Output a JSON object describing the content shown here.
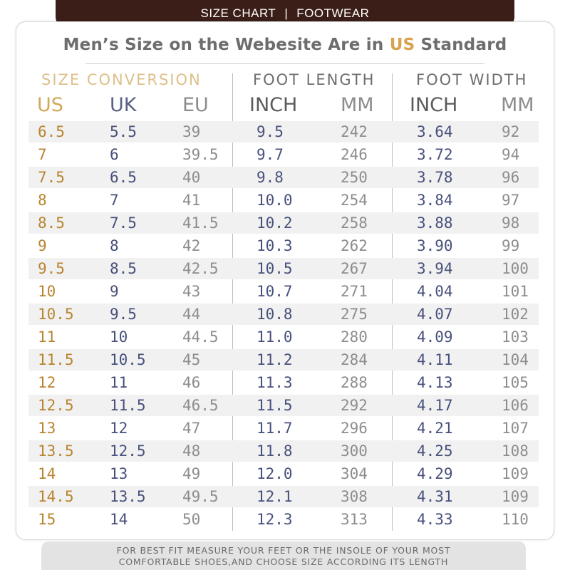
{
  "banner": {
    "left": "SIZE CHART",
    "separator": "|",
    "right": "FOOTWEAR"
  },
  "headline": {
    "before": "Men’s Size on the Webesite Are in ",
    "accent": "US",
    "after": " Standard"
  },
  "groups": {
    "conversion": "SIZE CONVERSION",
    "length": "FOOT LENGTH",
    "width": "FOOT WIDTH"
  },
  "subheaders": {
    "us": "US",
    "uk": "UK",
    "eu": "EU",
    "length_inch": "INCH",
    "length_mm": "MM",
    "width_inch": "INCH",
    "width_mm": "MM"
  },
  "colors": {
    "gold": "#b8852f",
    "navy": "#47507b",
    "gray": "#8d8d8d",
    "banner": "#3a1e17"
  },
  "rows": [
    {
      "us": "6.5",
      "uk": "5.5",
      "eu": "39",
      "length_inch": "9.5",
      "length_mm": "242",
      "width_inch": "3.64",
      "width_mm": "92"
    },
    {
      "us": "7",
      "uk": "6",
      "eu": "39.5",
      "length_inch": "9.7",
      "length_mm": "246",
      "width_inch": "3.72",
      "width_mm": "94"
    },
    {
      "us": "7.5",
      "uk": "6.5",
      "eu": "40",
      "length_inch": "9.8",
      "length_mm": "250",
      "width_inch": "3.78",
      "width_mm": "96"
    },
    {
      "us": "8",
      "uk": "7",
      "eu": "41",
      "length_inch": "10.0",
      "length_mm": "254",
      "width_inch": "3.84",
      "width_mm": "97"
    },
    {
      "us": "8.5",
      "uk": "7.5",
      "eu": "41.5",
      "length_inch": "10.2",
      "length_mm": "258",
      "width_inch": "3.88",
      "width_mm": "98"
    },
    {
      "us": "9",
      "uk": "8",
      "eu": "42",
      "length_inch": "10.3",
      "length_mm": "262",
      "width_inch": "3.90",
      "width_mm": "99"
    },
    {
      "us": "9.5",
      "uk": "8.5",
      "eu": "42.5",
      "length_inch": "10.5",
      "length_mm": "267",
      "width_inch": "3.94",
      "width_mm": "100"
    },
    {
      "us": "10",
      "uk": "9",
      "eu": "43",
      "length_inch": "10.7",
      "length_mm": "271",
      "width_inch": "4.04",
      "width_mm": "101"
    },
    {
      "us": "10.5",
      "uk": "9.5",
      "eu": "44",
      "length_inch": "10.8",
      "length_mm": "275",
      "width_inch": "4.07",
      "width_mm": "102"
    },
    {
      "us": "11",
      "uk": "10",
      "eu": "44.5",
      "length_inch": "11.0",
      "length_mm": "280",
      "width_inch": "4.09",
      "width_mm": "103"
    },
    {
      "us": "11.5",
      "uk": "10.5",
      "eu": "45",
      "length_inch": "11.2",
      "length_mm": "284",
      "width_inch": "4.11",
      "width_mm": "104"
    },
    {
      "us": "12",
      "uk": "11",
      "eu": "46",
      "length_inch": "11.3",
      "length_mm": "288",
      "width_inch": "4.13",
      "width_mm": "105"
    },
    {
      "us": "12.5",
      "uk": "11.5",
      "eu": "46.5",
      "length_inch": "11.5",
      "length_mm": "292",
      "width_inch": "4.17",
      "width_mm": "106"
    },
    {
      "us": "13",
      "uk": "12",
      "eu": "47",
      "length_inch": "11.7",
      "length_mm": "296",
      "width_inch": "4.21",
      "width_mm": "107"
    },
    {
      "us": "13.5",
      "uk": "12.5",
      "eu": "48",
      "length_inch": "11.8",
      "length_mm": "300",
      "width_inch": "4.25",
      "width_mm": "108"
    },
    {
      "us": "14",
      "uk": "13",
      "eu": "49",
      "length_inch": "12.0",
      "length_mm": "304",
      "width_inch": "4.29",
      "width_mm": "109"
    },
    {
      "us": "14.5",
      "uk": "13.5",
      "eu": "49.5",
      "length_inch": "12.1",
      "length_mm": "308",
      "width_inch": "4.31",
      "width_mm": "109"
    },
    {
      "us": "15",
      "uk": "14",
      "eu": "50",
      "length_inch": "12.3",
      "length_mm": "313",
      "width_inch": "4.33",
      "width_mm": "110"
    }
  ],
  "footer": {
    "line1": "FOR BEST FIT MEASURE YOUR FEET OR THE INSOLE OF YOUR MOST",
    "line2": "COMFORTABLE SHOES,AND CHOOSE SIZE ACCORDING ITS LENGTH"
  }
}
